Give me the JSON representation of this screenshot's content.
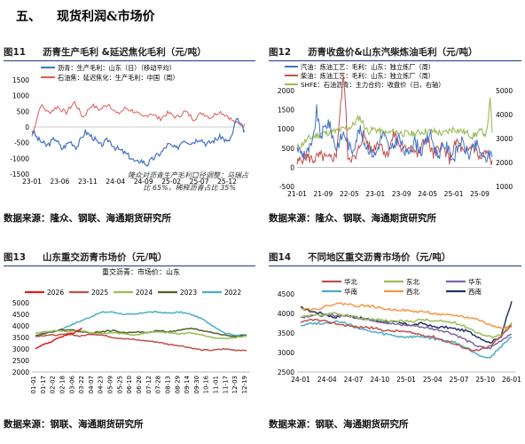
{
  "section": {
    "number": "五、",
    "title": "现货利润&市场价"
  },
  "figures": [
    {
      "label": "图11",
      "title": "沥青生产毛利 &延迟焦化毛利（元/吨）",
      "source": "数据来源：隆众、钢联、海通期货研究所",
      "chart_data": {
        "type": "line",
        "series": [
          {
            "name": "沥青：生产毛利：山东（日）（移动平均）",
            "color": "#4472c4",
            "ranges": [
              [
                0,
                -100
              ],
              [
                0.03,
                -400
              ],
              [
                0.07,
                -600
              ],
              [
                0.11,
                -350
              ],
              [
                0.14,
                -700
              ],
              [
                0.18,
                -450
              ],
              [
                0.21,
                -650
              ],
              [
                0.25,
                -150
              ],
              [
                0.29,
                -350
              ],
              [
                0.32,
                -600
              ],
              [
                0.36,
                -400
              ],
              [
                0.39,
                -650
              ],
              [
                0.43,
                -800
              ],
              [
                0.46,
                -950
              ],
              [
                0.49,
                -1150
              ],
              [
                0.51,
                -1050
              ],
              [
                0.54,
                -1200
              ],
              [
                0.57,
                -1000
              ],
              [
                0.61,
                -800
              ],
              [
                0.64,
                -550
              ],
              [
                0.68,
                -700
              ],
              [
                0.71,
                -400
              ],
              [
                0.75,
                -500
              ],
              [
                0.79,
                -350
              ],
              [
                0.82,
                -550
              ],
              [
                0.85,
                -450
              ],
              [
                0.89,
                -300
              ],
              [
                0.92,
                -500
              ],
              [
                0.945,
                -200
              ],
              [
                0.96,
                300
              ],
              [
                0.975,
                100
              ],
              [
                1,
                -120
              ]
            ]
          },
          {
            "name": "石油焦：延迟焦化：生产毛利：中国（周）",
            "color": "#e05a5a",
            "ranges": [
              [
                0,
                -300
              ],
              [
                0.04,
                700
              ],
              [
                0.08,
                450
              ],
              [
                0.12,
                650
              ],
              [
                0.16,
                450
              ],
              [
                0.2,
                800
              ],
              [
                0.24,
                300
              ],
              [
                0.28,
                700
              ],
              [
                0.32,
                550
              ],
              [
                0.36,
                750
              ],
              [
                0.4,
                400
              ],
              [
                0.44,
                600
              ],
              [
                0.48,
                500
              ],
              [
                0.52,
                300
              ],
              [
                0.56,
                450
              ],
              [
                0.6,
                250
              ],
              [
                0.64,
                450
              ],
              [
                0.68,
                300
              ],
              [
                0.72,
                500
              ],
              [
                0.76,
                250
              ],
              [
                0.8,
                450
              ],
              [
                0.84,
                300
              ],
              [
                0.88,
                500
              ],
              [
                0.92,
                350
              ],
              [
                0.95,
                150
              ],
              [
                0.97,
                100
              ],
              [
                1,
                50
              ]
            ]
          }
        ],
        "x_ticks": [
          "23-01",
          "23-06",
          "23-11",
          "24-04",
          "24-09",
          "25-02",
          "25-07",
          "25-12"
        ],
        "y_ticks": [
          1500,
          1000,
          500,
          0,
          -500,
          -1000,
          -1500
        ],
        "ylim": [
          -1500,
          1500
        ],
        "annotation": [
          "隆众对沥青生产毛利口径调整：马瑞占",
          "比 65%，稀释沥青占比 35%"
        ]
      }
    },
    {
      "label": "图12",
      "title": "沥青收盘价&山东汽柴炼油毛利（元/吨）",
      "source": "数据来源：隆众、钢联、海通期货研究所",
      "chart_data": {
        "type": "line",
        "series": [
          {
            "name": "汽油：炼油工艺：毛利：山东：独立炼厂（周）",
            "color": "#4472c4",
            "axis": "left",
            "ranges": [
              [
                0,
                500
              ],
              [
                0.04,
                300
              ],
              [
                0.08,
                600
              ],
              [
                0.1,
                1500
              ],
              [
                0.12,
                800
              ],
              [
                0.16,
                1200
              ],
              [
                0.2,
                500
              ],
              [
                0.24,
                900
              ],
              [
                0.28,
                400
              ],
              [
                0.32,
                1000
              ],
              [
                0.35,
                600
              ],
              [
                0.4,
                300
              ],
              [
                0.44,
                900
              ],
              [
                0.48,
                400
              ],
              [
                0.52,
                800
              ],
              [
                0.56,
                300
              ],
              [
                0.6,
                700
              ],
              [
                0.64,
                400
              ],
              [
                0.68,
                900
              ],
              [
                0.72,
                300
              ],
              [
                0.76,
                600
              ],
              [
                0.8,
                200
              ],
              [
                0.84,
                700
              ],
              [
                0.88,
                300
              ],
              [
                0.92,
                600
              ],
              [
                0.96,
                200
              ],
              [
                1,
                400
              ]
            ]
          },
          {
            "name": "柴油：炼油工艺：毛利：山东：独立炼厂（周）",
            "color": "#c0504d",
            "axis": "left",
            "ranges": [
              [
                0,
                100
              ],
              [
                0.04,
                300
              ],
              [
                0.08,
                200
              ],
              [
                0.12,
                300
              ],
              [
                0.16,
                200
              ],
              [
                0.2,
                300
              ],
              [
                0.24,
                2500
              ],
              [
                0.26,
                300
              ],
              [
                0.3,
                200
              ],
              [
                0.34,
                900
              ],
              [
                0.38,
                400
              ],
              [
                0.42,
                700
              ],
              [
                0.46,
                300
              ],
              [
                0.5,
                900
              ],
              [
                0.54,
                400
              ],
              [
                0.58,
                600
              ],
              [
                0.62,
                300
              ],
              [
                0.66,
                800
              ],
              [
                0.7,
                300
              ],
              [
                0.74,
                600
              ],
              [
                0.78,
                200
              ],
              [
                0.82,
                700
              ],
              [
                0.86,
                300
              ],
              [
                0.9,
                600
              ],
              [
                0.94,
                200
              ],
              [
                0.97,
                400
              ],
              [
                1,
                100
              ]
            ]
          },
          {
            "name": "SHFE：石油沥青：主力合约：收盘价（日，右轴）",
            "color": "#9bbb59",
            "axis": "right",
            "ranges": [
              [
                0,
                2600
              ],
              [
                0.06,
                3000
              ],
              [
                0.12,
                3200
              ],
              [
                0.2,
                3300
              ],
              [
                0.28,
                3500
              ],
              [
                0.32,
                3900
              ],
              [
                0.36,
                3300
              ],
              [
                0.4,
                3400
              ],
              [
                0.45,
                3200
              ],
              [
                0.5,
                3300
              ],
              [
                0.55,
                3200
              ],
              [
                0.6,
                3200
              ],
              [
                0.65,
                3300
              ],
              [
                0.7,
                3300
              ],
              [
                0.75,
                3200
              ],
              [
                0.8,
                3400
              ],
              [
                0.85,
                3300
              ],
              [
                0.9,
                3100
              ],
              [
                0.94,
                3300
              ],
              [
                0.97,
                3200
              ],
              [
                0.99,
                4600
              ],
              [
                1,
                3300
              ]
            ]
          }
        ],
        "x_ticks": [
          "21-01",
          "21-09",
          "22-05",
          "23-01",
          "23-09",
          "24-05",
          "25-01",
          "25-09"
        ],
        "y_ticks_left": [
          2000,
          1500,
          1000,
          500,
          0,
          -500
        ],
        "ylim_left": [
          -500,
          2000
        ],
        "y_ticks_right": [
          5000,
          4000,
          3000,
          2000,
          1000
        ],
        "ylim_right": [
          1000,
          5000
        ]
      }
    },
    {
      "label": "图13",
      "title": "山东重交沥青市场价（元/吨）",
      "source": "数据来源：钢联、海通期货研究所",
      "chart_data": {
        "type": "line",
        "title": "重交沥青：市场价：山东",
        "series": [
          {
            "name": "2026",
            "color": "#e41a1c",
            "values": [
              3000,
              3180,
              3300,
              3480,
              3600,
              3700,
              3900
            ]
          },
          {
            "name": "2025",
            "color": "#c0504d",
            "values": [
              3550,
              3600,
              3600,
              3650,
              3550,
              3650,
              3600,
              3500,
              3450,
              3400,
              3350,
              3300,
              3200,
              3150,
              3050,
              2950,
              2950,
              3000,
              2950,
              2950
            ]
          },
          {
            "name": "2024",
            "color": "#9bbb59",
            "values": [
              3700,
              3750,
              3800,
              3750,
              3800,
              3700,
              3650,
              3700,
              3650,
              3600,
              3700,
              3750,
              3700,
              3650,
              3700,
              3600,
              3500,
              3450,
              3500,
              3550
            ]
          },
          {
            "name": "2023",
            "color": "#4f6228",
            "values": [
              3600,
              3700,
              3800,
              3850,
              3750,
              3700,
              3750,
              3800,
              3700,
              3750,
              3700,
              3800,
              3750,
              3800,
              3900,
              3800,
              3700,
              3600,
              3550,
              3600
            ]
          },
          {
            "name": "2022",
            "color": "#4bacc6",
            "values": [
              3500,
              3700,
              3800,
              4000,
              4200,
              4400,
              4600,
              4600,
              4500,
              4500,
              4600,
              4600,
              4550,
              4600,
              4500,
              4300,
              4000,
              3700,
              3600,
              3600
            ]
          }
        ],
        "x_ticks": [
          "01-01",
          "01-17",
          "02-02",
          "02-18",
          "03-06",
          "03-22",
          "04-07",
          "04-23",
          "05-09",
          "05-25",
          "06-10",
          "06-26",
          "07-12",
          "07-28",
          "08-13",
          "08-29",
          "09-14",
          "09-30",
          "10-16",
          "11-01",
          "11-17",
          "12-03",
          "12-19"
        ],
        "y_ticks": [
          5000,
          4500,
          4000,
          3500,
          3000,
          2500,
          2000
        ],
        "ylim": [
          2000,
          5000
        ]
      }
    },
    {
      "label": "图14",
      "title": "不同地区重交沥青市场价（元/吨）",
      "source": "数据来源：钢联、海通期货研究所",
      "chart_data": {
        "type": "line",
        "title": "不同地区重交沥青市场价",
        "series": [
          {
            "name": "华北",
            "color": "#c0504d",
            "values": [
              3750,
              3850,
              3800,
              3750,
              3700,
              3650,
              3650,
              3600,
              3550,
              3550,
              3500,
              3450,
              3400,
              3300,
              3200,
              3100,
              3050,
              3150,
              3400,
              3700
            ]
          },
          {
            "name": "东北",
            "color": "#9bbb59",
            "values": [
              3900,
              3950,
              3950,
              4000,
              3950,
              3900,
              3850,
              3850,
              3800,
              3800,
              3800,
              3850,
              3800,
              3800,
              3750,
              3650,
              3500,
              3400,
              3450,
              3750
            ]
          },
          {
            "name": "华东",
            "color": "#8064a2",
            "values": [
              3900,
              3950,
              3950,
              3950,
              3950,
              3900,
              3850,
              3800,
              3750,
              3700,
              3700,
              3650,
              3600,
              3550,
              3450,
              3300,
              3150,
              3100,
              3300,
              3500
            ]
          },
          {
            "name": "华南",
            "color": "#4bacc6",
            "values": [
              3700,
              3750,
              3750,
              3800,
              3750,
              3650,
              3550,
              3500,
              3450,
              3400,
              3400,
              3400,
              3350,
              3300,
              3250,
              3100,
              2950,
              2850,
              3150,
              3400
            ]
          },
          {
            "name": "西北",
            "color": "#f79646",
            "values": [
              4150,
              4100,
              4150,
              4250,
              4250,
              4200,
              4200,
              4150,
              4100,
              4100,
              4050,
              4050,
              4000,
              3950,
              3950,
              3900,
              3850,
              3700,
              3650,
              3650
            ]
          },
          {
            "name": "西南",
            "color": "#1f3864",
            "values": [
              4150,
              4050,
              4000,
              3900,
              3950,
              3900,
              3850,
              3800,
              3800,
              3750,
              3700,
              3750,
              3650,
              3650,
              3600,
              3550,
              3400,
              3250,
              3400,
              4300
            ]
          }
        ],
        "x_ticks": [
          "24-01",
          "24-04",
          "24-07",
          "24-10",
          "25-01",
          "25-04",
          "25-07",
          "25-10",
          "26-01"
        ],
        "y_ticks": [
          4500,
          4000,
          3500,
          3000,
          2500
        ],
        "ylim": [
          2500,
          4500
        ]
      }
    }
  ]
}
